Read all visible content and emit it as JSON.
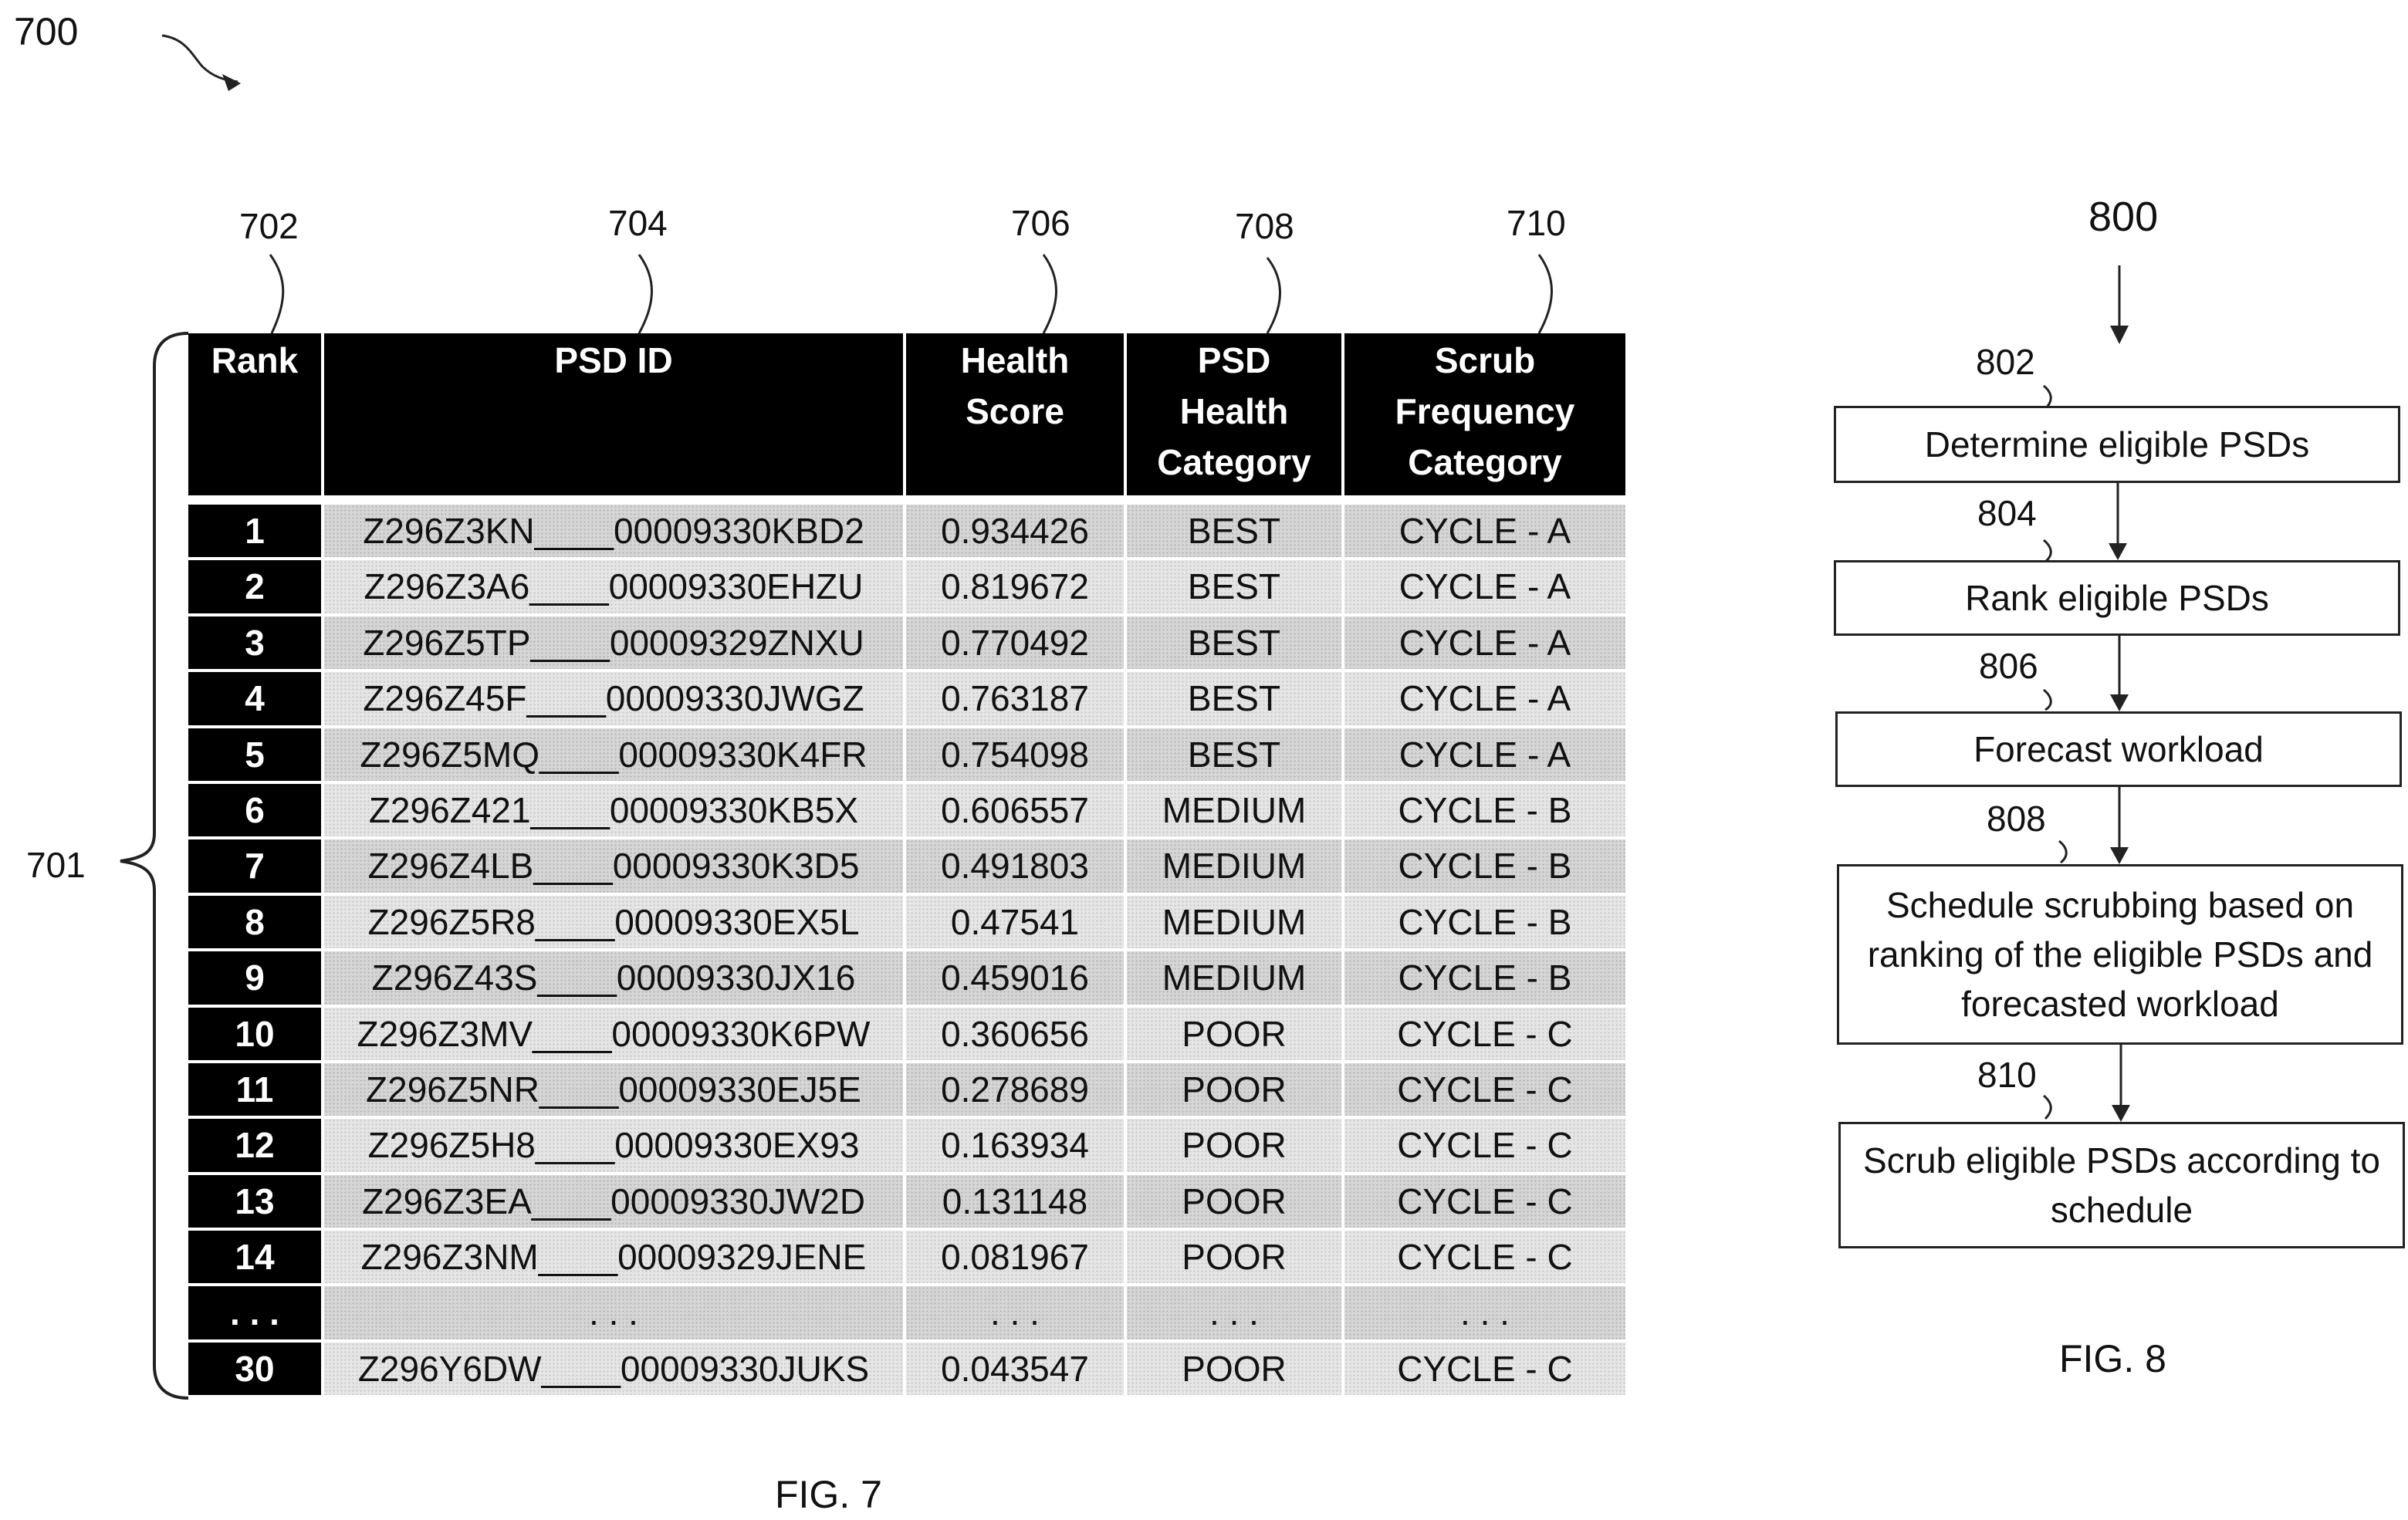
{
  "fig7": {
    "ref_main": "700",
    "ref_brace": "701",
    "column_refs": [
      "702",
      "704",
      "706",
      "708",
      "710"
    ],
    "headers": [
      "Rank",
      "PSD ID",
      "Health\nScore",
      "PSD\nHealth\nCategory",
      "Scrub\nFrequency\nCategory"
    ],
    "rows": [
      [
        "1",
        "Z296Z3KN____00009330KBD2",
        "0.934426",
        "BEST",
        "CYCLE - A"
      ],
      [
        "2",
        "Z296Z3A6____00009330EHZU",
        "0.819672",
        "BEST",
        "CYCLE - A"
      ],
      [
        "3",
        "Z296Z5TP____00009329ZNXU",
        "0.770492",
        "BEST",
        "CYCLE - A"
      ],
      [
        "4",
        "Z296Z45F____00009330JWGZ",
        "0.763187",
        "BEST",
        "CYCLE - A"
      ],
      [
        "5",
        "Z296Z5MQ____00009330K4FR",
        "0.754098",
        "BEST",
        "CYCLE - A"
      ],
      [
        "6",
        "Z296Z421____00009330KB5X",
        "0.606557",
        "MEDIUM",
        "CYCLE - B"
      ],
      [
        "7",
        "Z296Z4LB____00009330K3D5",
        "0.491803",
        "MEDIUM",
        "CYCLE - B"
      ],
      [
        "8",
        "Z296Z5R8____00009330EX5L",
        "0.47541",
        "MEDIUM",
        "CYCLE - B"
      ],
      [
        "9",
        "Z296Z43S____00009330JX16",
        "0.459016",
        "MEDIUM",
        "CYCLE - B"
      ],
      [
        "10",
        "Z296Z3MV____00009330K6PW",
        "0.360656",
        "POOR",
        "CYCLE - C"
      ],
      [
        "11",
        "Z296Z5NR____00009330EJ5E",
        "0.278689",
        "POOR",
        "CYCLE - C"
      ],
      [
        "12",
        "Z296Z5H8____00009330EX93",
        "0.163934",
        "POOR",
        "CYCLE - C"
      ],
      [
        "13",
        "Z296Z3EA____00009330JW2D",
        "0.131148",
        "POOR",
        "CYCLE - C"
      ],
      [
        "14",
        "Z296Z3NM____00009329JENE",
        "0.081967",
        "POOR",
        "CYCLE - C"
      ],
      [
        ". . .",
        ". . .",
        ". . .",
        ". . .",
        ". . ."
      ],
      [
        "30",
        "Z296Y6DW____00009330JUKS",
        "0.043547",
        "POOR",
        "CYCLE - C"
      ]
    ],
    "caption": "FIG. 7"
  },
  "fig8": {
    "ref_main": "800",
    "steps": [
      {
        "ref": "802",
        "label": "Determine eligible PSDs"
      },
      {
        "ref": "804",
        "label": "Rank eligible PSDs"
      },
      {
        "ref": "806",
        "label": "Forecast workload"
      },
      {
        "ref": "808",
        "label": "Schedule scrubbing based on ranking of the eligible PSDs and forecasted workload"
      },
      {
        "ref": "810",
        "label": "Scrub eligible PSDs according to schedule"
      }
    ],
    "caption": "FIG. 8"
  }
}
